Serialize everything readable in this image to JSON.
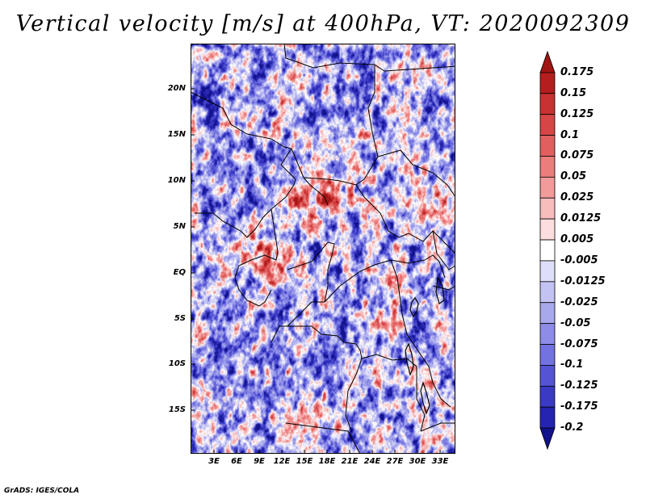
{
  "title": "Vertical velocity [m/s] at 400hPa, VT: 2020092309",
  "credit": "GrADS: IGES/COLA",
  "map": {
    "lat_labels": [
      "20N",
      "15N",
      "10N",
      "5N",
      "EQ",
      "5S",
      "10S",
      "15S"
    ],
    "lon_labels": [
      "3E",
      "6E",
      "9E",
      "12E",
      "15E",
      "18E",
      "21E",
      "24E",
      "27E",
      "30E",
      "33E"
    ]
  },
  "colorbar": {
    "labels": [
      "0.175",
      "0.15",
      "0.125",
      "0.1",
      "0.075",
      "0.05",
      "0.025",
      "0.0125",
      "0.005",
      "-0.005",
      "-0.0125",
      "-0.025",
      "-0.05",
      "-0.075",
      "-0.1",
      "-0.125",
      "-0.175",
      "-0.2"
    ],
    "colors": [
      "#a01414",
      "#b41e1e",
      "#c83232",
      "#d74646",
      "#e15f5f",
      "#eb7d7d",
      "#f29b9b",
      "#f7bcbc",
      "#fcdede",
      "#ffffff",
      "#dedef9",
      "#c3c3f3",
      "#a8a8ed",
      "#8d8de7",
      "#7272e0",
      "#5454d4",
      "#3a3ac4",
      "#2424b0",
      "#12128c"
    ]
  },
  "colors": {
    "frame": "#000000",
    "border": "#000000"
  }
}
